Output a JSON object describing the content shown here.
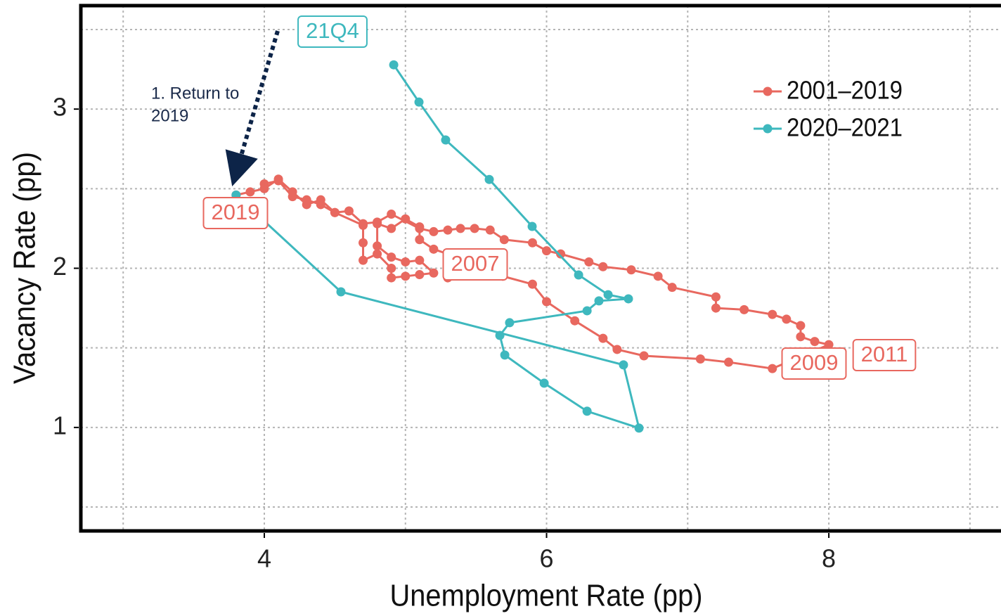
{
  "chart_data": {
    "type": "line",
    "x_label": "Unemployment Rate (pp)",
    "y_label": "Vacancy Rate (pp)",
    "xlim": [
      2.7,
      9.22
    ],
    "ylim": [
      0.35,
      3.65
    ],
    "xticks": [
      4,
      6,
      8
    ],
    "yticks": [
      1,
      2,
      3
    ],
    "xgrid_minor": [
      3,
      5,
      7,
      9
    ],
    "ygrid_minor": [
      0.5,
      1.5,
      2.5,
      3.5
    ],
    "grid": true,
    "legend": "upper right",
    "series": [
      {
        "name": "2001–2019",
        "color": "#e8685f",
        "x": [
          4.0,
          4.1,
          4.2,
          4.3,
          4.4,
          4.5,
          4.7,
          4.7,
          4.7,
          4.8,
          4.9,
          4.9,
          5.0,
          5.1,
          5.2,
          5.1,
          5.0,
          4.9,
          4.8,
          4.8,
          4.9,
          5.0,
          5.1,
          5.1,
          5.2,
          5.3,
          5.3,
          5.69,
          5.9,
          6.0,
          6.2,
          6.4,
          6.5,
          6.69,
          7.09,
          7.29,
          7.6,
          8.0,
          7.9,
          7.8,
          7.8,
          7.7,
          7.6,
          7.4,
          7.2,
          7.2,
          6.89,
          6.79,
          6.6,
          6.4,
          6.3,
          6.1,
          6.0,
          5.9,
          5.7,
          5.6,
          5.49,
          5.39,
          5.3,
          5.2,
          5.1,
          4.9,
          4.8,
          4.7,
          4.6,
          4.5,
          4.4,
          4.3,
          4.2,
          4.1,
          4.0,
          3.9,
          3.8
        ],
        "values": [
          2.53,
          2.55,
          2.45,
          2.43,
          2.4,
          2.35,
          2.27,
          2.16,
          2.05,
          2.09,
          2.0,
          1.94,
          1.95,
          1.96,
          1.97,
          2.05,
          2.04,
          2.07,
          2.14,
          2.28,
          2.25,
          2.31,
          2.26,
          2.18,
          2.12,
          2.09,
          1.94,
          1.95,
          1.9,
          1.79,
          1.67,
          1.56,
          1.49,
          1.45,
          1.43,
          1.41,
          1.37,
          1.52,
          1.54,
          1.57,
          1.64,
          1.68,
          1.71,
          1.74,
          1.75,
          1.82,
          1.88,
          1.95,
          1.99,
          2.01,
          2.04,
          2.09,
          2.11,
          2.16,
          2.18,
          2.24,
          2.25,
          2.25,
          2.24,
          2.23,
          2.25,
          2.34,
          2.29,
          2.28,
          2.36,
          2.35,
          2.43,
          2.4,
          2.48,
          2.56,
          2.5,
          2.48,
          2.46
        ]
      },
      {
        "name": "2020–2021",
        "color": "#3eb8be",
        "x": [
          3.8,
          4.543,
          6.545,
          6.655,
          6.287,
          5.983,
          5.704,
          5.669,
          5.738,
          6.287,
          6.371,
          6.58,
          6.436,
          6.227,
          5.898,
          5.594,
          5.285,
          5.096,
          4.917
        ],
        "values": [
          2.46,
          1.852,
          1.393,
          0.996,
          1.102,
          1.278,
          1.455,
          1.578,
          1.658,
          1.733,
          1.795,
          1.808,
          1.834,
          1.958,
          2.263,
          2.558,
          2.806,
          3.044,
          3.278
        ]
      }
    ],
    "annotations": [
      {
        "text": "2019",
        "color": "#e8685f"
      },
      {
        "text": "2007",
        "color": "#e8685f"
      },
      {
        "text": "2009",
        "color": "#e8685f"
      },
      {
        "text": "2011",
        "color": "#e8685f"
      },
      {
        "text": "21Q4",
        "color": "#3eb8be"
      }
    ],
    "note": [
      "1. Return to",
      "2019"
    ]
  }
}
